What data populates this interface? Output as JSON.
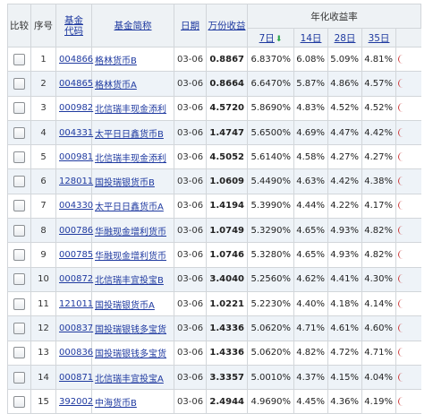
{
  "header": {
    "compare": "比较",
    "seq": "序号",
    "fund_code": "基金代码",
    "fund_code_l1": "基金",
    "fund_code_l2": "代码",
    "fund_name": "基金简称",
    "date": "日期",
    "per10k": "万份收益",
    "annual_group": "年化收益率",
    "d7": "7日",
    "d14": "14日",
    "d28": "28日",
    "d35": "35日",
    "sort_icon": "green-down-arrow"
  },
  "rows": [
    {
      "seq": "1",
      "code": "004866",
      "name": "格林货币B",
      "date": "03-06",
      "per10k": "0.8867",
      "d7": "6.8370%",
      "d14": "6.08%",
      "d28": "5.09%",
      "d35": "4.81%"
    },
    {
      "seq": "2",
      "code": "004865",
      "name": "格林货币A",
      "date": "03-06",
      "per10k": "0.8664",
      "d7": "6.6470%",
      "d14": "5.87%",
      "d28": "4.86%",
      "d35": "4.57%"
    },
    {
      "seq": "3",
      "code": "000982",
      "name": "北信瑞丰现金添利",
      "date": "03-06",
      "per10k": "4.5720",
      "d7": "5.8690%",
      "d14": "4.83%",
      "d28": "4.52%",
      "d35": "4.52%"
    },
    {
      "seq": "4",
      "code": "004331",
      "name": "太平日日鑫货币B",
      "date": "03-06",
      "per10k": "1.4747",
      "d7": "5.6500%",
      "d14": "4.69%",
      "d28": "4.47%",
      "d35": "4.42%"
    },
    {
      "seq": "5",
      "code": "000981",
      "name": "北信瑞丰现金添利",
      "date": "03-06",
      "per10k": "4.5052",
      "d7": "5.6140%",
      "d14": "4.58%",
      "d28": "4.27%",
      "d35": "4.27%"
    },
    {
      "seq": "6",
      "code": "128011",
      "name": "国投瑞银货币B",
      "date": "03-06",
      "per10k": "1.0609",
      "d7": "5.4490%",
      "d14": "4.63%",
      "d28": "4.42%",
      "d35": "4.38%"
    },
    {
      "seq": "7",
      "code": "004330",
      "name": "太平日日鑫货币A",
      "date": "03-06",
      "per10k": "1.4194",
      "d7": "5.3990%",
      "d14": "4.44%",
      "d28": "4.22%",
      "d35": "4.17%"
    },
    {
      "seq": "8",
      "code": "000786",
      "name": "华融现金增利货币",
      "date": "03-06",
      "per10k": "1.0749",
      "d7": "5.3290%",
      "d14": "4.65%",
      "d28": "4.93%",
      "d35": "4.82%"
    },
    {
      "seq": "9",
      "code": "000785",
      "name": "华融现金增利货币",
      "date": "03-06",
      "per10k": "1.0746",
      "d7": "5.3280%",
      "d14": "4.65%",
      "d28": "4.93%",
      "d35": "4.82%"
    },
    {
      "seq": "10",
      "code": "000872",
      "name": "北信瑞丰宜投宝B",
      "date": "03-06",
      "per10k": "3.4040",
      "d7": "5.2560%",
      "d14": "4.62%",
      "d28": "4.41%",
      "d35": "4.30%"
    },
    {
      "seq": "11",
      "code": "121011",
      "name": "国投瑞银货币A",
      "date": "03-06",
      "per10k": "1.0221",
      "d7": "5.2230%",
      "d14": "4.40%",
      "d28": "4.18%",
      "d35": "4.14%"
    },
    {
      "seq": "12",
      "code": "000837",
      "name": "国投瑞银钱多宝货",
      "date": "03-06",
      "per10k": "1.4336",
      "d7": "5.0620%",
      "d14": "4.71%",
      "d28": "4.61%",
      "d35": "4.60%"
    },
    {
      "seq": "13",
      "code": "000836",
      "name": "国投瑞银钱多宝货",
      "date": "03-06",
      "per10k": "1.4336",
      "d7": "5.0620%",
      "d14": "4.82%",
      "d28": "4.72%",
      "d35": "4.71%"
    },
    {
      "seq": "14",
      "code": "000871",
      "name": "北信瑞丰宜投宝A",
      "date": "03-06",
      "per10k": "3.3357",
      "d7": "5.0010%",
      "d14": "4.37%",
      "d28": "4.15%",
      "d35": "4.04%"
    },
    {
      "seq": "15",
      "code": "392002",
      "name": "中海货币B",
      "date": "03-06",
      "per10k": "2.4944",
      "d7": "4.9690%",
      "d14": "4.45%",
      "d28": "4.36%",
      "d35": "4.19%"
    }
  ]
}
